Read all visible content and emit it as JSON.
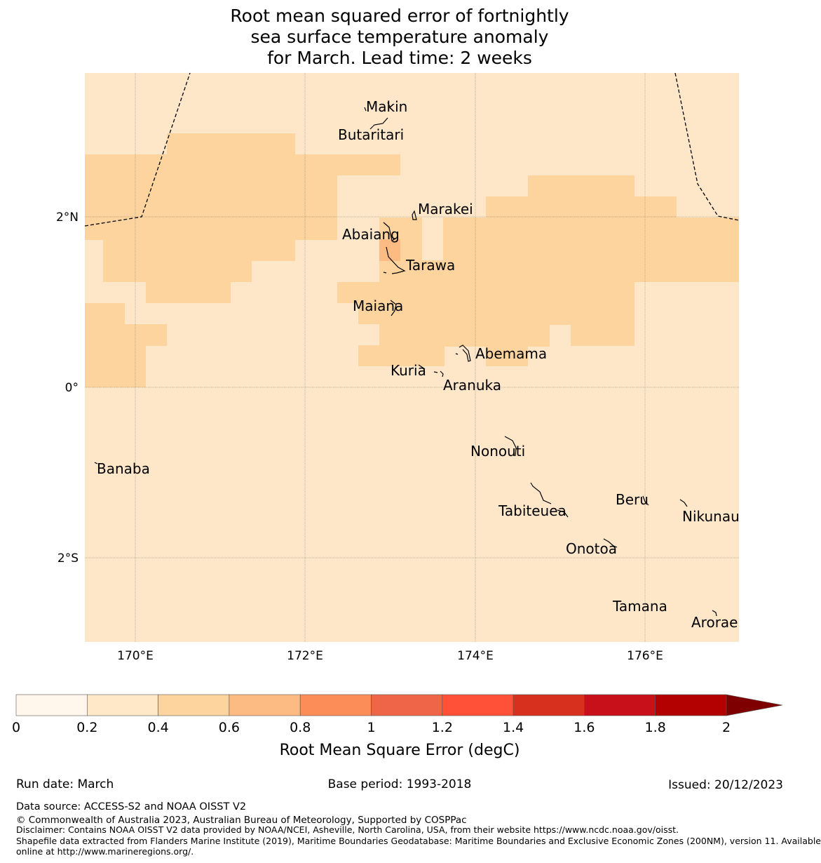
{
  "title": {
    "line1": "Root mean squared error of fortnightly",
    "line2": "sea surface temperature anomaly",
    "line3": "for March. Lead time: 2 weeks"
  },
  "map": {
    "x_ticks": [
      "170°E",
      "172°E",
      "174°E",
      "176°E"
    ],
    "y_ticks": [
      "2°N",
      "0°",
      "2°S"
    ],
    "islands": [
      "Makin",
      "Butaritari",
      "Marakei",
      "Abaiang",
      "Tarawa",
      "Maiana",
      "Abemama",
      "Kuria",
      "Aranuka",
      "Nonouti",
      "Banaba",
      "Beru",
      "Tabiteuea",
      "Nikunau",
      "Onotoa",
      "Tamana",
      "Arorae"
    ],
    "colors": {
      "band_0_2_0_4": "#fee6c9",
      "band_0_4_0_6": "#fdd49e",
      "band_0_6_0_8": "#fdbb84"
    }
  },
  "colorbar": {
    "ticks": [
      "0",
      "0.2",
      "0.4",
      "0.6",
      "0.8",
      "1",
      "1.2",
      "1.4",
      "1.6",
      "1.8",
      "2"
    ],
    "colors": [
      "#fff7ec",
      "#fee8c8",
      "#fdd49e",
      "#fdbb84",
      "#fc8d59",
      "#ef6548",
      "#ff5038",
      "#d7301f",
      "#c8101a",
      "#b30000",
      "#7f0000"
    ],
    "label": "Root Mean Square Error (degC)"
  },
  "footer": {
    "run_date": "Run date: March",
    "base_period": "Base period: 1993-2018",
    "issued": "Issued: 20/12/2023",
    "data_source": "Data source: ACCESS-S2 and NOAA OISST V2",
    "copyright": "© Commonwealth of Australia 2023, Australian Bureau of Meteorology, Supported by COSPPac",
    "disclaimer": "Disclaimer: Contains NOAA OISST V2 data provided by NOAA/NCEI, Asheville, North Carolina, USA, from their website https://www.ncdc.noaa.gov/oisst.",
    "shapefile_1": "Shapefile data extracted from Flanders Marine Institute (2019), Maritime Boundaries Geodatabase: Maritime Boundaries and Exclusive Economic Zones (200NM), version 11. Available",
    "shapefile_2": "online at http://www.marineregions.org/."
  }
}
